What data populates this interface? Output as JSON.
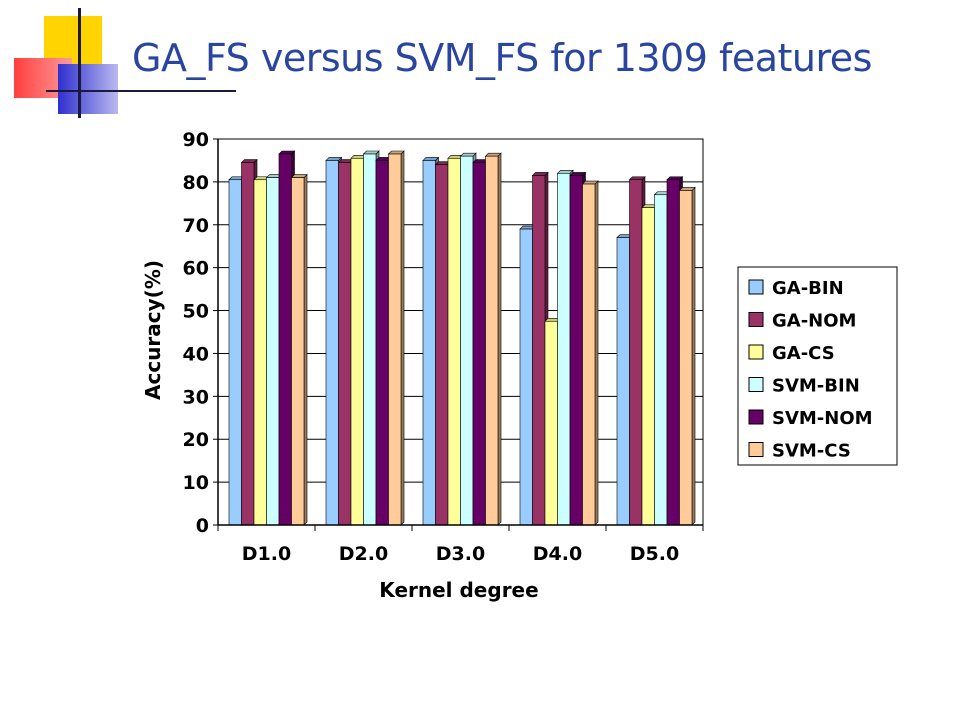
{
  "slide": {
    "title": "GA_FS versus SVM_FS for 1309 features"
  },
  "colors": {
    "title": "#2a45a0",
    "deco_yellow": "#ffd400",
    "deco_red": "#ff5555",
    "deco_blue": "#3d3dd6"
  },
  "chart_data": {
    "type": "bar",
    "title": "",
    "xlabel": "Kernel degree",
    "ylabel": "Accuracy(%)",
    "ylim": [
      0,
      90
    ],
    "yticks": [
      0,
      10,
      20,
      30,
      40,
      50,
      60,
      70,
      80,
      90
    ],
    "grid": true,
    "legend_position": "right",
    "categories": [
      "D1.0",
      "D2.0",
      "D3.0",
      "D4.0",
      "D5.0"
    ],
    "series": [
      {
        "name": "GA-BIN",
        "color": "#99ccff",
        "values": [
          80.5,
          85.0,
          85.0,
          69.0,
          67.0
        ]
      },
      {
        "name": "GA-NOM",
        "color": "#993366",
        "values": [
          84.5,
          84.5,
          84.0,
          81.5,
          80.5
        ]
      },
      {
        "name": "GA-CS",
        "color": "#ffff99",
        "values": [
          80.5,
          85.5,
          85.5,
          47.5,
          74.0
        ]
      },
      {
        "name": "SVM-BIN",
        "color": "#ccffff",
        "values": [
          81.0,
          86.5,
          86.0,
          82.0,
          77.0
        ]
      },
      {
        "name": "SVM-NOM",
        "color": "#660066",
        "values": [
          86.5,
          85.0,
          84.5,
          81.5,
          80.5
        ]
      },
      {
        "name": "SVM-CS",
        "color": "#ffcc99",
        "values": [
          81.0,
          86.5,
          86.0,
          79.5,
          78.0
        ]
      }
    ]
  }
}
